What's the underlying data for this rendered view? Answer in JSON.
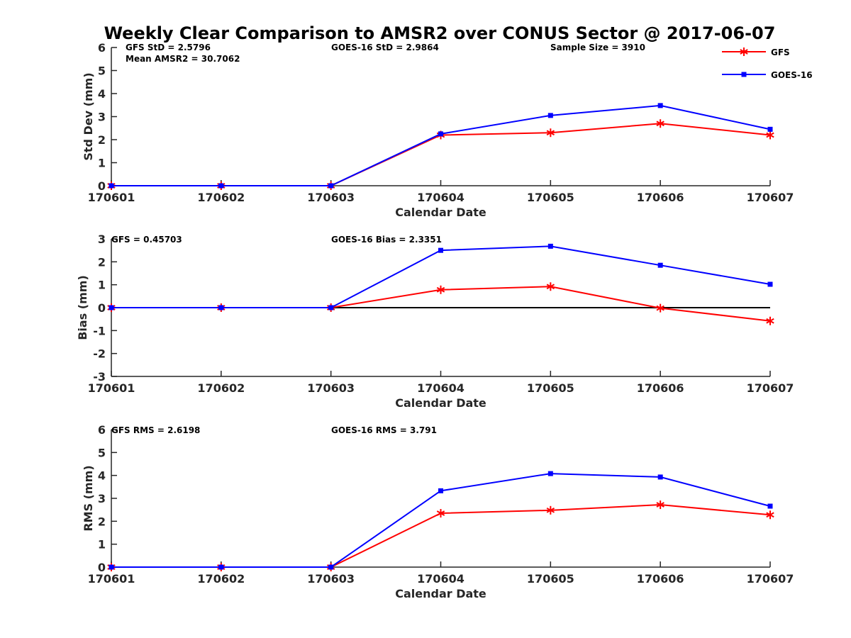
{
  "figure": {
    "title": "Weekly Clear Comparison to AMSR2 over CONUS Sector @ 2017-06-07"
  },
  "legend": {
    "placement": "top-right",
    "entries": [
      {
        "name": "GFS",
        "color": "#ff0000",
        "marker": "asterisk"
      },
      {
        "name": "GOES-16",
        "color": "#0000ff",
        "marker": "square"
      }
    ]
  },
  "chart_data": [
    {
      "type": "line",
      "xlabel": "Calendar Date",
      "ylabel": "Std Dev (mm)",
      "x": [
        "170601",
        "170602",
        "170603",
        "170604",
        "170605",
        "170606",
        "170607"
      ],
      "ylim": [
        0,
        6
      ],
      "yticks": [
        "0",
        "1",
        "2",
        "3",
        "4",
        "5",
        "6"
      ],
      "zero_line": false,
      "annotations": [
        "GFS StD = 2.5796",
        "Mean AMSR2 = 30.7062",
        "GOES-16 StD = 2.9864",
        "Sample Size = 3910"
      ],
      "series": [
        {
          "name": "GFS",
          "color": "#ff0000",
          "marker": "asterisk",
          "values": [
            0,
            0,
            0,
            2.2,
            2.3,
            2.7,
            2.2
          ]
        },
        {
          "name": "GOES-16",
          "color": "#0000ff",
          "marker": "square",
          "values": [
            0,
            0,
            0,
            2.25,
            3.05,
            3.48,
            2.45
          ]
        }
      ]
    },
    {
      "type": "line",
      "xlabel": "Calendar Date",
      "ylabel": "Bias (mm)",
      "x": [
        "170601",
        "170602",
        "170603",
        "170604",
        "170605",
        "170606",
        "170607"
      ],
      "ylim": [
        -3,
        3
      ],
      "yticks": [
        "-3",
        "-2",
        "-1",
        "0",
        "1",
        "2",
        "3"
      ],
      "zero_line": true,
      "annotations": [
        "GFS = 0.45703",
        "GOES-16 Bias  = 2.3351"
      ],
      "series": [
        {
          "name": "GFS",
          "color": "#ff0000",
          "marker": "asterisk",
          "values": [
            0,
            0,
            0,
            0.78,
            0.92,
            -0.02,
            -0.58
          ]
        },
        {
          "name": "GOES-16",
          "color": "#0000ff",
          "marker": "square",
          "values": [
            0,
            0,
            0,
            2.5,
            2.68,
            1.85,
            1.02
          ]
        }
      ]
    },
    {
      "type": "line",
      "xlabel": "Calendar Date",
      "ylabel": "RMS (mm)",
      "x": [
        "170601",
        "170602",
        "170603",
        "170604",
        "170605",
        "170606",
        "170607"
      ],
      "ylim": [
        0,
        6
      ],
      "yticks": [
        "0",
        "1",
        "2",
        "3",
        "4",
        "5",
        "6"
      ],
      "zero_line": false,
      "annotations": [
        "GFS RMS = 2.6198",
        "GOES-16 RMS = 3.791"
      ],
      "series": [
        {
          "name": "GFS",
          "color": "#ff0000",
          "marker": "asterisk",
          "values": [
            0,
            0,
            0,
            2.35,
            2.48,
            2.72,
            2.28
          ]
        },
        {
          "name": "GOES-16",
          "color": "#0000ff",
          "marker": "square",
          "values": [
            0,
            0,
            0,
            3.33,
            4.08,
            3.93,
            2.66
          ]
        }
      ]
    }
  ]
}
